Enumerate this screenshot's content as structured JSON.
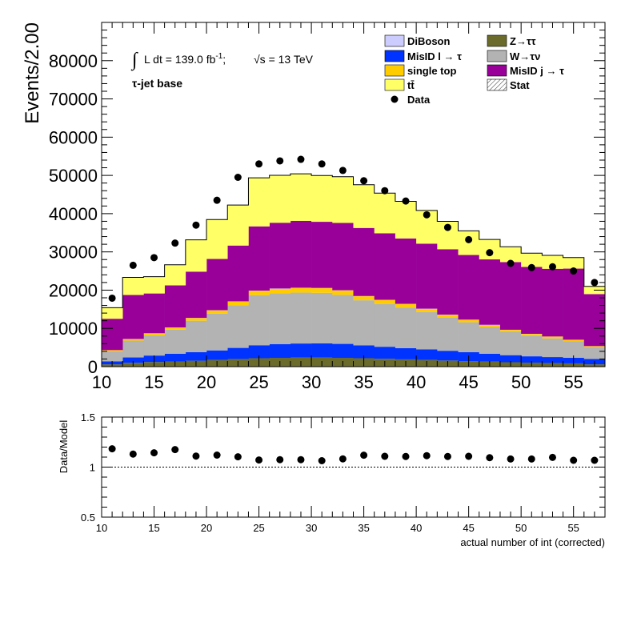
{
  "chart_data": [
    {
      "type": "area",
      "style": "stacked step histogram with data points",
      "ylabel": "Events/2.00",
      "xlim": [
        10,
        58
      ],
      "ylim": [
        0,
        90000
      ],
      "x_ticks": [
        "10",
        "15",
        "20",
        "25",
        "30",
        "35",
        "40",
        "45",
        "50",
        "55"
      ],
      "y_ticks": [
        "0",
        "10000",
        "20000",
        "30000",
        "40000",
        "50000",
        "60000",
        "70000",
        "80000"
      ],
      "annotations": {
        "lumi_prefix": "∫",
        "lumi_text": "L dt = 139.0 fb",
        "lumi_sup": "-1",
        "lumi_sep": ";",
        "energy": "√s = 13 TeV",
        "region": "τ-jet base"
      },
      "bin_edges": [
        10,
        12,
        14,
        16,
        18,
        20,
        22,
        24,
        26,
        28,
        30,
        32,
        34,
        36,
        38,
        40,
        42,
        44,
        46,
        48,
        50,
        52,
        54,
        56,
        58
      ],
      "series": [
        {
          "name": "Z→ττ",
          "color": "#6b6b2b",
          "values": [
            600,
            1000,
            1200,
            1350,
            1550,
            1750,
            2000,
            2200,
            2300,
            2350,
            2350,
            2300,
            2200,
            2050,
            1900,
            1750,
            1600,
            1450,
            1300,
            1150,
            1050,
            950,
            850,
            600
          ]
        },
        {
          "name": "MisID l → τ",
          "color": "#0033ff",
          "values": [
            800,
            1400,
            1700,
            2000,
            2250,
            2500,
            2900,
            3400,
            3600,
            3700,
            3750,
            3650,
            3350,
            3150,
            2950,
            2750,
            2550,
            2350,
            2050,
            1850,
            1650,
            1550,
            1450,
            1400
          ]
        },
        {
          "name": "W→τν",
          "color": "#b3b3b3",
          "values": [
            2600,
            4400,
            5300,
            6300,
            8200,
            9600,
            11100,
            13100,
            13300,
            13300,
            13200,
            12800,
            11800,
            11200,
            10600,
            9800,
            8700,
            7800,
            7000,
            6100,
            5400,
            4900,
            4300,
            3100
          ]
        },
        {
          "name": "single top",
          "color": "#ffcc00",
          "values": [
            300,
            400,
            500,
            550,
            700,
            850,
            1000,
            1100,
            1150,
            1200,
            1200,
            1150,
            1050,
            1000,
            900,
            800,
            700,
            650,
            550,
            500,
            450,
            450,
            400,
            250
          ]
        },
        {
          "name": "DiBoson",
          "color": "#ccccff",
          "values": [
            20,
            30,
            30,
            40,
            40,
            50,
            60,
            70,
            70,
            70,
            70,
            70,
            60,
            60,
            60,
            50,
            50,
            40,
            40,
            40,
            30,
            30,
            30,
            20
          ]
        },
        {
          "name": "MisID j → τ",
          "color": "#990099",
          "values": [
            8200,
            11500,
            10400,
            11000,
            12100,
            13400,
            14600,
            16800,
            17200,
            17500,
            17300,
            17600,
            17800,
            17400,
            17100,
            17000,
            17100,
            16900,
            17100,
            17700,
            17500,
            17700,
            18600,
            13600
          ]
        },
        {
          "name": "tt̄",
          "color": "#ffff66",
          "values": [
            2900,
            4600,
            4400,
            5400,
            8300,
            10300,
            10600,
            12700,
            12400,
            12300,
            12100,
            12100,
            11300,
            10500,
            9700,
            8700,
            7300,
            6300,
            5200,
            4000,
            3600,
            3500,
            2900,
            2000
          ]
        }
      ],
      "data_points": {
        "name": "Data",
        "x": [
          11,
          13,
          15,
          17,
          19,
          21,
          23,
          25,
          27,
          29,
          31,
          33,
          35,
          37,
          39,
          41,
          43,
          45,
          47,
          49,
          51,
          53,
          55,
          57
        ],
        "y": [
          17900,
          26500,
          28500,
          32300,
          37000,
          43500,
          49500,
          53000,
          53800,
          54200,
          53000,
          51300,
          48600,
          46000,
          43300,
          39700,
          36400,
          33200,
          29800,
          27000,
          25900,
          26100,
          25000,
          22000
        ]
      },
      "legend": {
        "placement": "top-right",
        "columns": [
          [
            "DiBoson",
            "MisID l → τ",
            "single top",
            "tt̄",
            "Data"
          ],
          [
            "Z→ττ",
            "W→τν",
            "MisID j → τ",
            "Stat"
          ]
        ]
      }
    },
    {
      "type": "scatter",
      "ylabel": "Data/Model",
      "xlabel": "actual number of int (corrected)",
      "xlim": [
        10,
        58
      ],
      "ylim": [
        0.5,
        1.5
      ],
      "x_ticks": [
        "10",
        "15",
        "20",
        "25",
        "30",
        "35",
        "40",
        "45",
        "50",
        "55"
      ],
      "y_ticks": [
        "0.5",
        "1",
        "1.5"
      ],
      "reference_line": 1.0,
      "x": [
        11,
        13,
        15,
        17,
        19,
        21,
        23,
        25,
        27,
        29,
        31,
        33,
        35,
        37,
        39,
        41,
        43,
        45,
        47,
        49,
        51,
        53,
        55,
        57
      ],
      "y": [
        1.183,
        1.13,
        1.143,
        1.175,
        1.11,
        1.12,
        1.103,
        1.071,
        1.074,
        1.074,
        1.064,
        1.082,
        1.119,
        1.108,
        1.106,
        1.114,
        1.106,
        1.108,
        1.094,
        1.081,
        1.081,
        1.097,
        1.068,
        1.068
      ]
    }
  ],
  "legend_labels": {
    "diboson": "DiBoson",
    "misid_l": "MisID l → τ",
    "single_top": "single top",
    "ttbar": "tt̄",
    "data": "Data",
    "ztautau": "Z→ττ",
    "wtaunu": "W→τν",
    "misid_j": "MisID j → τ",
    "stat": "Stat"
  }
}
